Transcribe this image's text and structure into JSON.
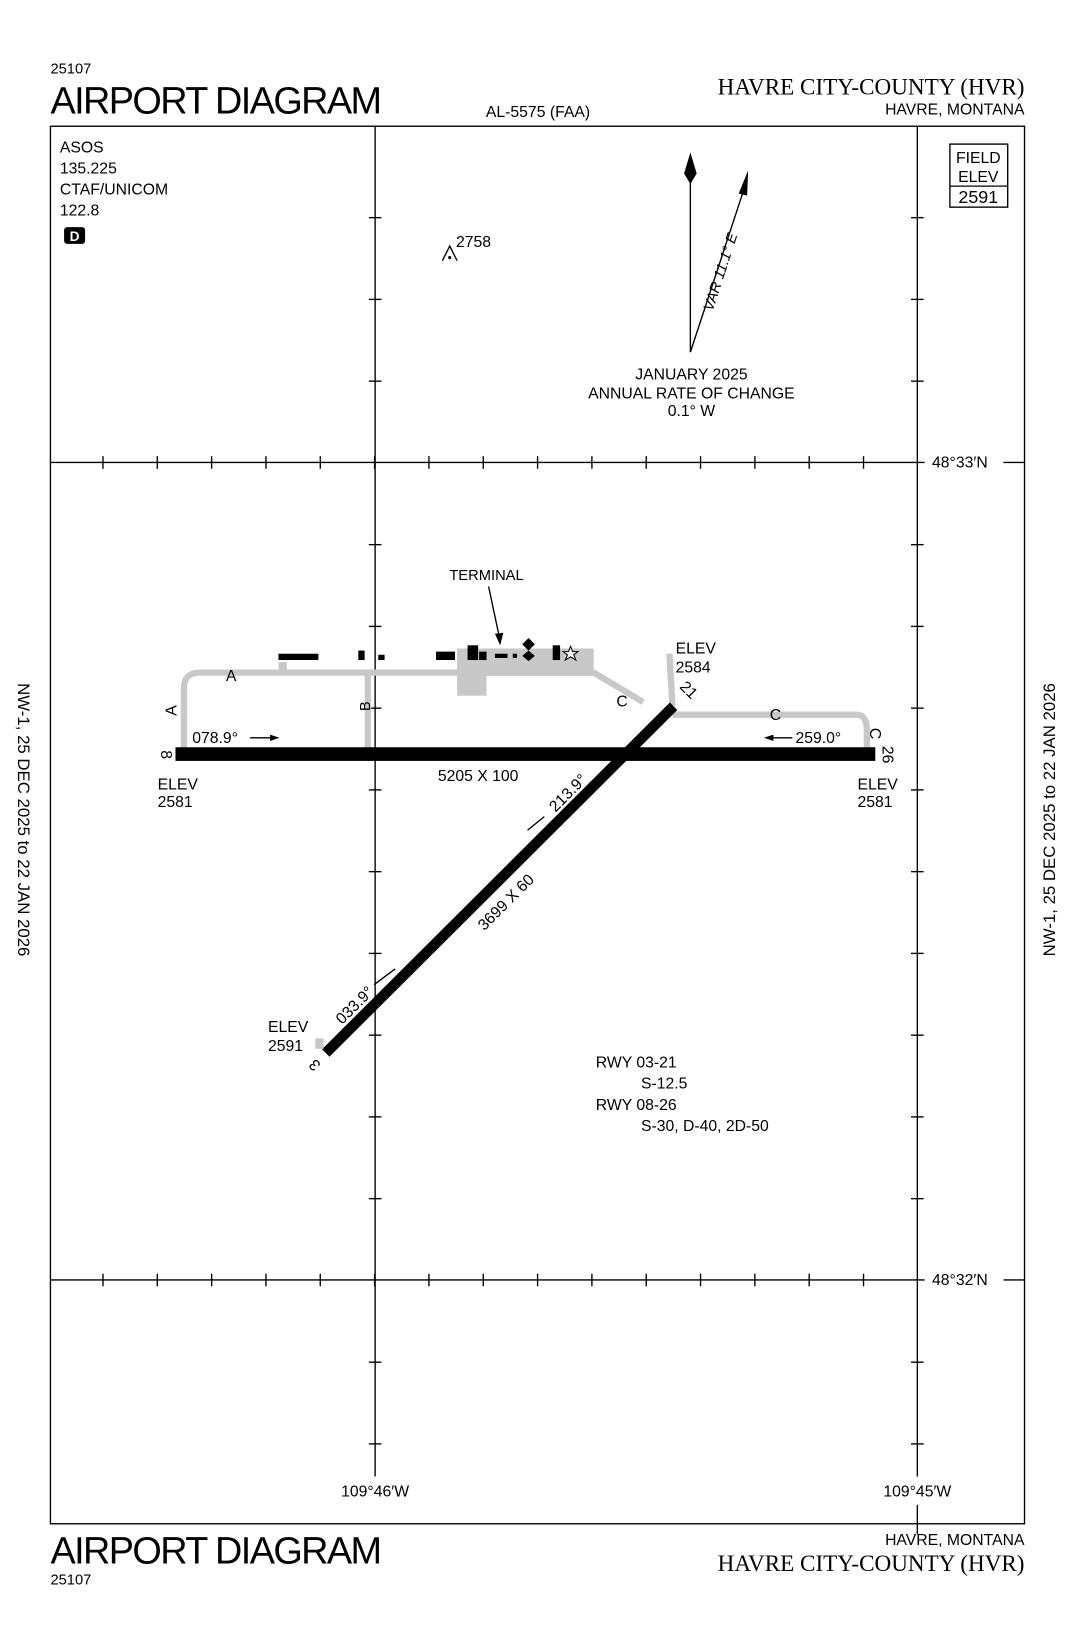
{
  "header": {
    "chart_number": "25107",
    "title": "AIRPORT DIAGRAM",
    "procedure_id": "AL-5575 (FAA)",
    "airport": "HAVRE CITY-COUNTY (HVR)",
    "city": "HAVRE, MONTANA"
  },
  "communications": {
    "lines": [
      "ASOS",
      "135.225",
      "CTAF/UNICOM",
      "122.8"
    ],
    "icon": "D"
  },
  "field_elevation": {
    "lines": [
      "FIELD",
      "ELEV"
    ],
    "value": "2591"
  },
  "variation": {
    "label": "VAR 11.1° E",
    "lines": [
      "JANUARY 2025",
      "ANNUAL RATE OF CHANGE",
      "0.1° W"
    ]
  },
  "obstacle": {
    "elevation": "2758"
  },
  "latitudes": [
    "48°33′N",
    "48°32′N"
  ],
  "longitudes": [
    "109°46′W",
    "109°45′W"
  ],
  "terminal": "TERMINAL",
  "taxiways": [
    "A",
    "B",
    "C"
  ],
  "runways": [
    {
      "designators": [
        "8",
        "26"
      ],
      "headings": [
        "078.9°",
        "259.0°"
      ],
      "dimensions": "5205 X 100"
    },
    {
      "designators": [
        "3",
        "21"
      ],
      "headings": [
        "033.9°",
        "213.9°"
      ],
      "dimensions": "3699 X 60"
    }
  ],
  "elevations": [
    {
      "label": "ELEV",
      "value": "2581"
    },
    {
      "label": "ELEV",
      "value": "2581"
    },
    {
      "label": "ELEV",
      "value": "2584"
    },
    {
      "label": "ELEV",
      "value": "2591"
    }
  ],
  "strength": [
    {
      "runway": "RWY 03-21",
      "values": "S-12.5"
    },
    {
      "runway": "RWY 08-26",
      "values": "S-30, D-40, 2D-50"
    }
  ],
  "effective_dates": "NW-1, 25 DEC 2025 to 22 JAN 2026"
}
